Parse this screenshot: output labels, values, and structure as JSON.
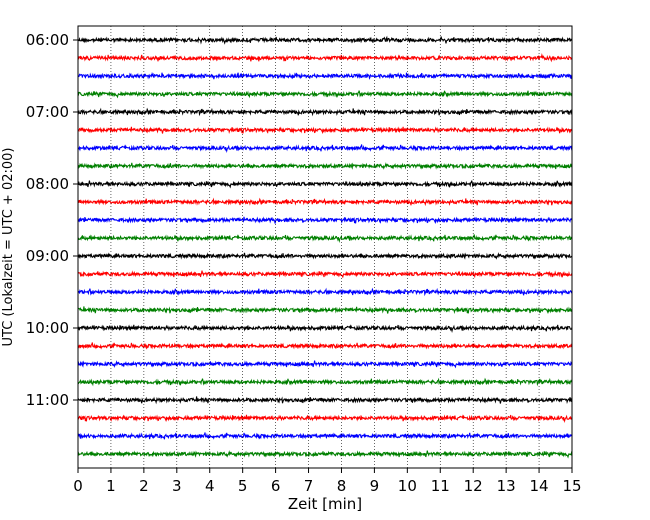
{
  "chart_data": {
    "type": "line",
    "title": "",
    "xlabel": "Zeit  [min]",
    "ylabel": "UTC (Lokalzeit = UTC + 02:00)",
    "xlim": [
      0,
      15
    ],
    "xticks": [
      0,
      1,
      2,
      3,
      4,
      5,
      6,
      7,
      8,
      9,
      10,
      11,
      12,
      13,
      14,
      15
    ],
    "y_start": "06:00",
    "y_end": "11:45",
    "trace_interval_min": 15,
    "y_tick_labels": [
      "06:00",
      "07:00",
      "08:00",
      "09:00",
      "10:00",
      "11:00"
    ],
    "trace_colors": [
      "#000000",
      "#ff0000",
      "#0000ff",
      "#008000"
    ],
    "traces": [
      "06:00",
      "06:15",
      "06:30",
      "06:45",
      "07:00",
      "07:15",
      "07:30",
      "07:45",
      "08:00",
      "08:15",
      "08:30",
      "08:45",
      "09:00",
      "09:15",
      "09:30",
      "09:45",
      "10:00",
      "10:15",
      "10:30",
      "10:45",
      "11:00",
      "11:15",
      "11:30",
      "11:45"
    ],
    "x_grid": "dotted",
    "legend": "none"
  }
}
